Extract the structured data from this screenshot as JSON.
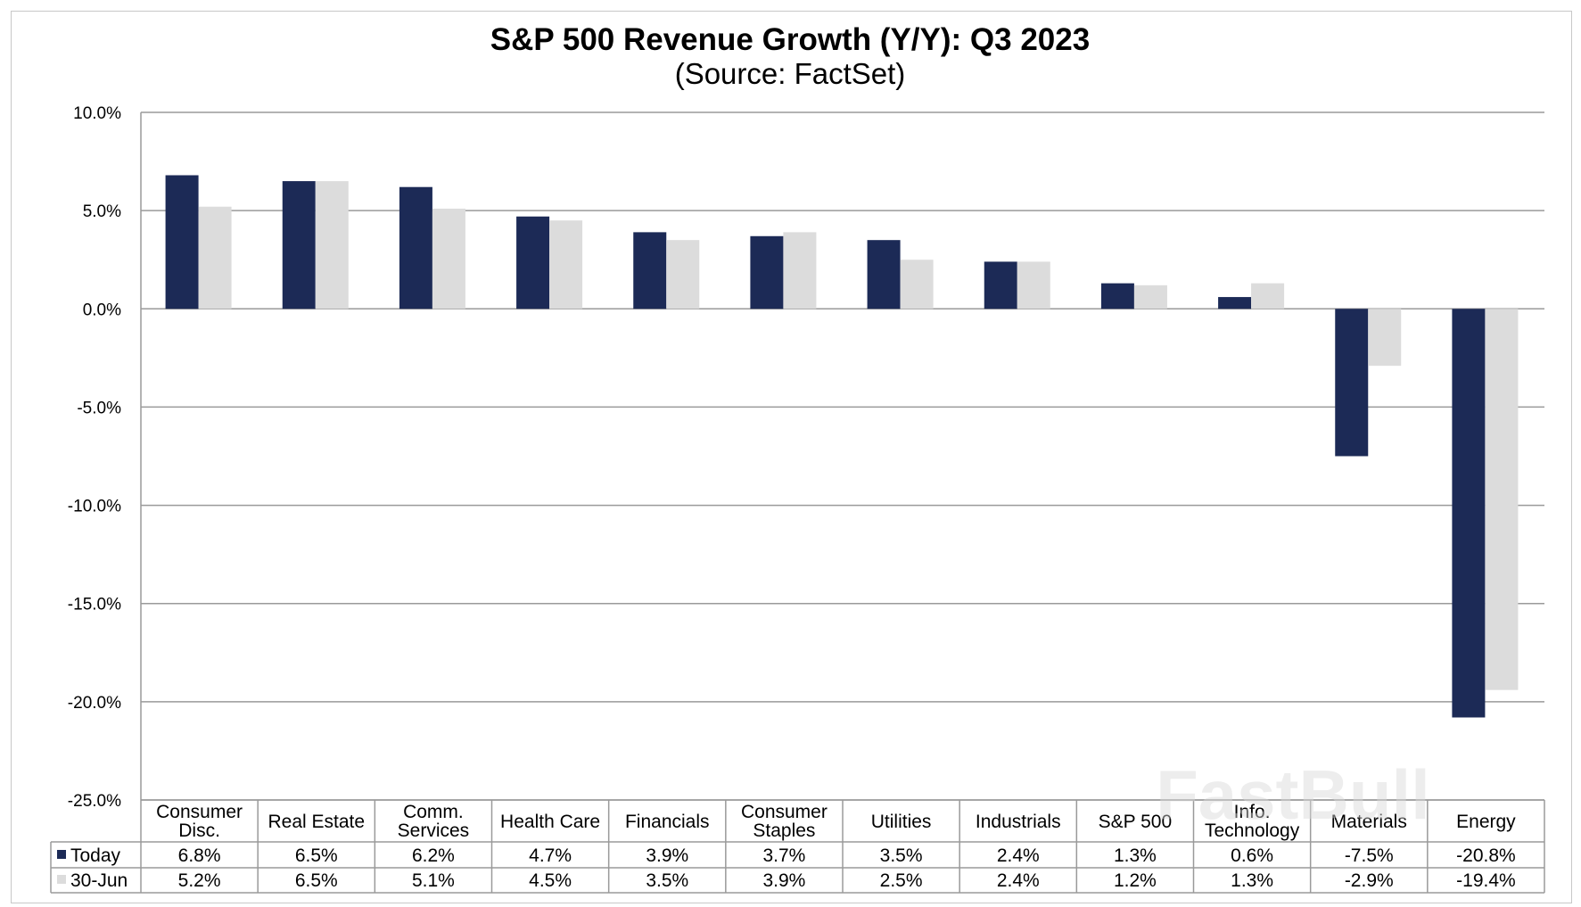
{
  "chart_data": {
    "type": "bar",
    "title": "S&P 500 Revenue Growth (Y/Y):  Q3 2023",
    "subtitle": "(Source: FactSet)",
    "categories": [
      [
        "Consumer",
        "Disc."
      ],
      [
        "Real Estate"
      ],
      [
        "Comm.",
        "Services"
      ],
      [
        "Health Care"
      ],
      [
        "Financials"
      ],
      [
        "Consumer",
        "Staples"
      ],
      [
        "Utilities"
      ],
      [
        "Industrials"
      ],
      [
        "S&P 500"
      ],
      [
        "Info.",
        "Technology"
      ],
      [
        "Materials"
      ],
      [
        "Energy"
      ]
    ],
    "series": [
      {
        "name": "Today",
        "color": "#1c2a56",
        "values": [
          6.8,
          6.5,
          6.2,
          4.7,
          3.9,
          3.7,
          3.5,
          2.4,
          1.3,
          0.6,
          -7.5,
          -20.8
        ],
        "labels": [
          "6.8%",
          "6.5%",
          "6.2%",
          "4.7%",
          "3.9%",
          "3.7%",
          "3.5%",
          "2.4%",
          "1.3%",
          "0.6%",
          "-7.5%",
          "-20.8%"
        ]
      },
      {
        "name": "30-Jun",
        "color": "#dcdcdc",
        "values": [
          5.2,
          6.5,
          5.1,
          4.5,
          3.5,
          3.9,
          2.5,
          2.4,
          1.2,
          1.3,
          -2.9,
          -19.4
        ],
        "labels": [
          "5.2%",
          "6.5%",
          "5.1%",
          "4.5%",
          "3.5%",
          "3.9%",
          "2.5%",
          "2.4%",
          "1.2%",
          "1.3%",
          "-2.9%",
          "-19.4%"
        ]
      }
    ],
    "ylim": [
      -25,
      10
    ],
    "yticks": [
      10,
      5,
      0,
      -5,
      -10,
      -15,
      -20,
      -25
    ],
    "ytick_labels": [
      "10.0%",
      "5.0%",
      "0.0%",
      "-5.0%",
      "-10.0%",
      "-15.0%",
      "-20.0%",
      "-25.0%"
    ],
    "grid": true,
    "legend": "data-table",
    "xlabel": "",
    "ylabel": ""
  },
  "watermark": "FastBull",
  "colors": {
    "gridline": "#9a9a9a",
    "frame": "#c8c8c8",
    "table_border": "#9a9a9a"
  }
}
